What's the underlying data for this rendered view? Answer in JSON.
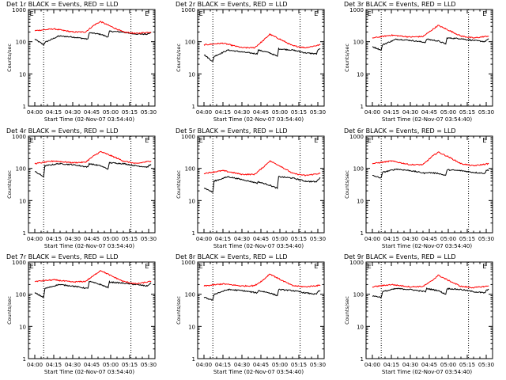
{
  "chart_data": [
    {
      "type": "line",
      "title": "Det 1r BLACK = Events, RED = LLD",
      "xlabel": "Start Time (02-Nov-07 03:54:40)",
      "ylabel": "Counts/sec",
      "ylim": [
        1,
        1000
      ],
      "y_scale": "log",
      "x_tick_labels": [
        "04:00",
        "04:15",
        "04:30",
        "04:45",
        "05:00",
        "05:15",
        "05:30"
      ],
      "y_tick_labels": [
        "1",
        "10",
        "100",
        "1000"
      ],
      "marker_labels": [
        "E",
        "E"
      ],
      "series": [
        {
          "color": "#000000",
          "x": [
            "04:00",
            "04:07",
            "04:08",
            "04:19",
            "04:30",
            "04:42",
            "04:43",
            "04:52",
            "04:58",
            "04:59",
            "05:10",
            "05:15",
            "05:20",
            "05:29",
            "05:30",
            "05:32"
          ],
          "values": [
            120,
            80,
            95,
            150,
            140,
            120,
            190,
            170,
            140,
            210,
            200,
            180,
            175,
            170,
            180,
            190
          ]
        },
        {
          "color": "#ff0000",
          "x": [
            "04:00",
            "04:15",
            "04:30",
            "04:40",
            "04:47",
            "04:52",
            "05:00",
            "05:10",
            "05:20",
            "05:32"
          ],
          "values": [
            220,
            250,
            200,
            200,
            330,
            420,
            300,
            200,
            180,
            200
          ]
        }
      ]
    },
    {
      "type": "line",
      "title": "Det 2r BLACK = Events, RED = LLD",
      "xlabel": "Start Time (02-Nov-07 03:54:40)",
      "ylabel": "Counts/sec",
      "ylim": [
        1,
        1000
      ],
      "y_scale": "log",
      "x_tick_labels": [
        "04:00",
        "04:15",
        "04:30",
        "04:45",
        "05:00",
        "05:15",
        "05:30"
      ],
      "y_tick_labels": [
        "1",
        "10",
        "100",
        "1000"
      ],
      "marker_labels": [
        "E",
        "E"
      ],
      "series": [
        {
          "color": "#000000",
          "x": [
            "04:00",
            "04:07",
            "04:08",
            "04:19",
            "04:30",
            "04:42",
            "04:43",
            "04:52",
            "04:58",
            "04:59",
            "05:10",
            "05:15",
            "05:20",
            "05:29",
            "05:30",
            "05:32"
          ],
          "values": [
            40,
            24,
            35,
            55,
            48,
            42,
            55,
            45,
            35,
            60,
            55,
            50,
            45,
            42,
            55,
            60
          ]
        },
        {
          "color": "#ff0000",
          "x": [
            "04:00",
            "04:15",
            "04:30",
            "04:40",
            "04:47",
            "04:52",
            "05:00",
            "05:10",
            "05:20",
            "05:32"
          ],
          "values": [
            80,
            90,
            65,
            65,
            110,
            170,
            120,
            75,
            65,
            80
          ]
        }
      ]
    },
    {
      "type": "line",
      "title": "Det 3r BLACK = Events, RED = LLD",
      "xlabel": "Start Time (02-Nov-07 03:54:40)",
      "ylabel": "Counts/sec",
      "ylim": [
        1,
        1000
      ],
      "y_scale": "log",
      "x_tick_labels": [
        "04:00",
        "04:15",
        "04:30",
        "04:45",
        "05:00",
        "05:15",
        "05:30"
      ],
      "y_tick_labels": [
        "1",
        "10",
        "100",
        "1000"
      ],
      "marker_labels": [
        "E",
        "E"
      ],
      "series": [
        {
          "color": "#000000",
          "x": [
            "04:00",
            "04:07",
            "04:08",
            "04:19",
            "04:30",
            "04:42",
            "04:43",
            "04:52",
            "04:58",
            "04:59",
            "05:10",
            "05:15",
            "05:20",
            "05:29",
            "05:30",
            "05:32"
          ],
          "values": [
            70,
            55,
            80,
            120,
            110,
            95,
            120,
            105,
            85,
            130,
            125,
            115,
            110,
            100,
            110,
            120
          ]
        },
        {
          "color": "#ff0000",
          "x": [
            "04:00",
            "04:15",
            "04:30",
            "04:40",
            "04:47",
            "04:52",
            "05:00",
            "05:10",
            "05:20",
            "05:32"
          ],
          "values": [
            130,
            160,
            140,
            145,
            230,
            320,
            230,
            150,
            130,
            150
          ]
        }
      ]
    },
    {
      "type": "line",
      "title": "Det 4r BLACK = Events, RED = LLD",
      "xlabel": "Start Time (02-Nov-07 03:54:40)",
      "ylabel": "Counts/sec",
      "ylim": [
        1,
        1000
      ],
      "y_scale": "log",
      "x_tick_labels": [
        "04:00",
        "04:15",
        "04:30",
        "04:45",
        "05:00",
        "05:15",
        "05:30"
      ],
      "y_tick_labels": [
        "1",
        "10",
        "100",
        "1000"
      ],
      "marker_labels": [
        "E",
        "E"
      ],
      "series": [
        {
          "color": "#000000",
          "x": [
            "04:00",
            "04:07",
            "04:08",
            "04:19",
            "04:30",
            "04:42",
            "04:43",
            "04:52",
            "04:58",
            "04:59",
            "05:10",
            "05:15",
            "05:20",
            "05:29",
            "05:30",
            "05:32"
          ],
          "values": [
            80,
            55,
            120,
            140,
            130,
            110,
            140,
            120,
            95,
            150,
            140,
            130,
            120,
            110,
            120,
            130
          ]
        },
        {
          "color": "#ff0000",
          "x": [
            "04:00",
            "04:15",
            "04:30",
            "04:40",
            "04:47",
            "04:52",
            "05:00",
            "05:10",
            "05:20",
            "05:32"
          ],
          "values": [
            140,
            170,
            150,
            155,
            250,
            330,
            250,
            170,
            140,
            170
          ]
        }
      ]
    },
    {
      "type": "line",
      "title": "Det 5r BLACK = Events, RED = LLD",
      "xlabel": "Start Time (02-Nov-07 03:54:40)",
      "ylabel": "Counts/sec",
      "ylim": [
        1,
        1000
      ],
      "y_scale": "log",
      "x_tick_labels": [
        "04:00",
        "04:15",
        "04:30",
        "04:45",
        "05:00",
        "05:15",
        "05:30"
      ],
      "y_tick_labels": [
        "1",
        "10",
        "100",
        "1000"
      ],
      "marker_labels": [
        "E",
        "E"
      ],
      "series": [
        {
          "color": "#000000",
          "x": [
            "04:00",
            "04:07",
            "04:08",
            "04:19",
            "04:30",
            "04:42",
            "04:43",
            "04:52",
            "04:58",
            "04:59",
            "05:10",
            "05:15",
            "05:20",
            "05:29",
            "05:30",
            "05:32"
          ],
          "values": [
            25,
            18,
            40,
            55,
            45,
            35,
            38,
            30,
            24,
            55,
            50,
            45,
            40,
            38,
            45,
            50
          ]
        },
        {
          "color": "#ff0000",
          "x": [
            "04:00",
            "04:15",
            "04:30",
            "04:40",
            "04:47",
            "04:52",
            "05:00",
            "05:10",
            "05:20",
            "05:32"
          ],
          "values": [
            70,
            85,
            65,
            65,
            110,
            170,
            120,
            70,
            60,
            70
          ]
        }
      ]
    },
    {
      "type": "line",
      "title": "Det 6r BLACK = Events, RED = LLD",
      "xlabel": "Start Time (02-Nov-07 03:54:40)",
      "ylabel": "Counts/sec",
      "ylim": [
        1,
        1000
      ],
      "y_scale": "log",
      "x_tick_labels": [
        "04:00",
        "04:15",
        "04:30",
        "04:45",
        "05:00",
        "05:15",
        "05:30"
      ],
      "y_tick_labels": [
        "1",
        "10",
        "100",
        "1000"
      ],
      "marker_labels": [
        "E",
        "E"
      ],
      "series": [
        {
          "color": "#000000",
          "x": [
            "04:00",
            "04:07",
            "04:08",
            "04:19",
            "04:30",
            "04:42",
            "04:43",
            "04:52",
            "04:58",
            "04:59",
            "05:10",
            "05:15",
            "05:20",
            "05:29",
            "05:30",
            "05:32"
          ],
          "values": [
            60,
            50,
            75,
            95,
            85,
            70,
            75,
            70,
            60,
            90,
            85,
            80,
            75,
            70,
            85,
            90
          ]
        },
        {
          "color": "#ff0000",
          "x": [
            "04:00",
            "04:15",
            "04:30",
            "04:40",
            "04:47",
            "04:52",
            "05:00",
            "05:10",
            "05:20",
            "05:32"
          ],
          "values": [
            140,
            170,
            130,
            130,
            230,
            320,
            230,
            140,
            120,
            140
          ]
        }
      ]
    },
    {
      "type": "line",
      "title": "Det 7r BLACK = Events, RED = LLD",
      "xlabel": "Start Time (02-Nov-07 03:54:40)",
      "ylabel": "Counts/sec",
      "ylim": [
        1,
        1000
      ],
      "y_scale": "log",
      "x_tick_labels": [
        "04:00",
        "04:15",
        "04:30",
        "04:45",
        "05:00",
        "05:15",
        "05:30"
      ],
      "y_tick_labels": [
        "1",
        "10",
        "100",
        "1000"
      ],
      "marker_labels": [
        "E",
        "E"
      ],
      "series": [
        {
          "color": "#000000",
          "x": [
            "04:00",
            "04:07",
            "04:08",
            "04:19",
            "04:30",
            "04:42",
            "04:43",
            "04:52",
            "04:58",
            "04:59",
            "05:10",
            "05:15",
            "05:20",
            "05:29",
            "05:30",
            "05:32"
          ],
          "values": [
            110,
            80,
            150,
            200,
            180,
            150,
            250,
            200,
            160,
            240,
            220,
            210,
            200,
            180,
            200,
            220
          ]
        },
        {
          "color": "#ff0000",
          "x": [
            "04:00",
            "04:15",
            "04:30",
            "04:40",
            "04:47",
            "04:52",
            "05:00",
            "05:10",
            "05:20",
            "05:32"
          ],
          "values": [
            250,
            280,
            240,
            250,
            390,
            550,
            380,
            250,
            210,
            250
          ]
        }
      ]
    },
    {
      "type": "line",
      "title": "Det 8r BLACK = Events, RED = LLD",
      "xlabel": "Start Time (02-Nov-07 03:54:40)",
      "ylabel": "Counts/sec",
      "ylim": [
        1,
        1000
      ],
      "y_scale": "log",
      "x_tick_labels": [
        "04:00",
        "04:15",
        "04:30",
        "04:45",
        "05:00",
        "05:15",
        "05:30"
      ],
      "y_tick_labels": [
        "1",
        "10",
        "100",
        "1000"
      ],
      "marker_labels": [
        "E",
        "E"
      ],
      "series": [
        {
          "color": "#000000",
          "x": [
            "04:00",
            "04:07",
            "04:08",
            "04:19",
            "04:30",
            "04:42",
            "04:43",
            "04:52",
            "04:58",
            "04:59",
            "05:10",
            "05:15",
            "05:20",
            "05:29",
            "05:30",
            "05:32"
          ],
          "values": [
            80,
            65,
            100,
            140,
            130,
            110,
            130,
            110,
            90,
            140,
            130,
            120,
            110,
            100,
            120,
            130
          ]
        },
        {
          "color": "#ff0000",
          "x": [
            "04:00",
            "04:15",
            "04:30",
            "04:40",
            "04:47",
            "04:52",
            "05:00",
            "05:10",
            "05:20",
            "05:32"
          ],
          "values": [
            180,
            210,
            180,
            185,
            280,
            430,
            290,
            185,
            170,
            190
          ]
        }
      ]
    },
    {
      "type": "line",
      "title": "Det 9r BLACK = Events, RED = LLD",
      "xlabel": "Start Time (02-Nov-07 03:54:40)",
      "ylabel": "Counts/sec",
      "ylim": [
        1,
        1000
      ],
      "y_scale": "log",
      "x_tick_labels": [
        "04:00",
        "04:15",
        "04:30",
        "04:45",
        "05:00",
        "05:15",
        "05:30"
      ],
      "y_tick_labels": [
        "1",
        "10",
        "100",
        "1000"
      ],
      "marker_labels": [
        "E",
        "E"
      ],
      "series": [
        {
          "color": "#000000",
          "x": [
            "04:00",
            "04:07",
            "04:08",
            "04:19",
            "04:30",
            "04:42",
            "04:43",
            "04:52",
            "04:58",
            "04:59",
            "05:10",
            "05:15",
            "05:20",
            "05:29",
            "05:30",
            "05:32"
          ],
          "values": [
            90,
            80,
            120,
            150,
            140,
            120,
            150,
            130,
            100,
            150,
            140,
            130,
            120,
            110,
            130,
            140
          ]
        },
        {
          "color": "#ff0000",
          "x": [
            "04:00",
            "04:15",
            "04:30",
            "04:40",
            "04:47",
            "04:52",
            "05:00",
            "05:10",
            "05:20",
            "05:32"
          ],
          "values": [
            170,
            200,
            170,
            175,
            260,
            390,
            270,
            175,
            160,
            180
          ]
        }
      ]
    }
  ]
}
